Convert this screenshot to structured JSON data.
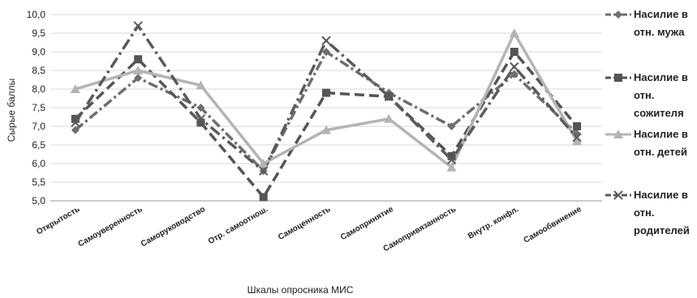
{
  "chart_data": {
    "type": "line",
    "title": "",
    "xlabel": "Шкалы опросника МИС",
    "ylabel": "Сырые баллы",
    "ylim": [
      5.0,
      10.0
    ],
    "ytick_step": 0.5,
    "grid": true,
    "legend_position": "right",
    "categories": [
      "Открытость",
      "Самоуверенность",
      "Саморуководство",
      "Отр. самоотнош.",
      "Самоценность",
      "Самопринятие",
      "Самопривязанность",
      "Внутр. конфл.",
      "Самообвинение"
    ],
    "series": [
      {
        "name_lines": [
          "Насилие в",
          "отн. мужа"
        ],
        "values": [
          6.9,
          8.3,
          7.5,
          5.8,
          9.0,
          7.9,
          7.0,
          8.4,
          6.8
        ],
        "color": "#6e6e6e",
        "dash": "12,4,3,4",
        "marker": "diamond"
      },
      {
        "name_lines": [
          "Насилие в",
          "отн.",
          "сожителя"
        ],
        "values": [
          7.2,
          8.8,
          7.1,
          5.1,
          7.9,
          7.8,
          6.2,
          9.0,
          7.0
        ],
        "color": "#555555",
        "dash": "12,6",
        "marker": "square"
      },
      {
        "name_lines": [
          "Насилие в",
          "отн. детей"
        ],
        "values": [
          8.0,
          8.5,
          8.1,
          6.0,
          6.9,
          7.2,
          5.9,
          9.5,
          6.6
        ],
        "color": "#b4b4b4",
        "dash": "",
        "marker": "triangle"
      },
      {
        "name_lines": [
          "Насилие в",
          "отн.",
          "родителей"
        ],
        "values": [
          7.1,
          9.7,
          7.2,
          5.8,
          9.3,
          7.8,
          6.1,
          8.6,
          6.7
        ],
        "color": "#5a5a5a",
        "dash": "14,5,3,5",
        "marker": "x"
      }
    ]
  }
}
